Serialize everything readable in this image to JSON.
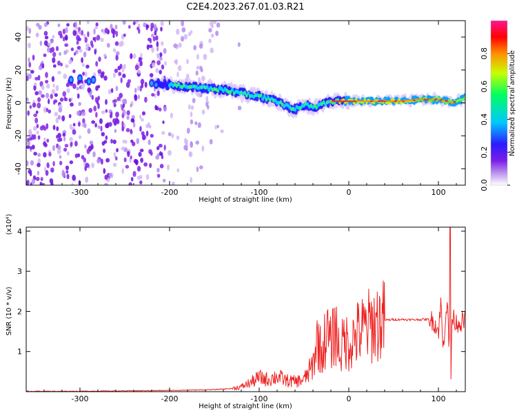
{
  "title": "C2E4.2023.267.01.03.R21",
  "chart_data": [
    {
      "type": "heatmap",
      "name": "spectrogram",
      "xlabel": "Height of straight line (km)",
      "ylabel": "Frequency (Hz)",
      "xlim": [
        -360,
        130
      ],
      "ylim": [
        -50,
        50
      ],
      "xticks": [
        -300,
        -200,
        -100,
        0,
        100
      ],
      "yticks": [
        -40,
        -20,
        0,
        20,
        40
      ],
      "colorbar": {
        "label": "Normalized spectral amplitude",
        "range": [
          0,
          1
        ],
        "ticks": [
          0.0,
          0.2,
          0.4,
          0.6,
          0.8
        ],
        "colors": [
          "#ffffff",
          "#c9a8f0",
          "#7a1ee6",
          "#2a1cff",
          "#00c8ff",
          "#00ff60",
          "#c8ff00",
          "#ff9000",
          "#ff0000",
          "#ff1493"
        ]
      },
      "ridge": {
        "x": [
          -310,
          -280,
          -220,
          -200,
          -180,
          -160,
          -140,
          -120,
          -100,
          -80,
          -70,
          -60,
          -50,
          -40,
          -30,
          -20,
          0,
          20,
          40,
          60,
          80,
          100,
          110,
          115,
          130
        ],
        "y": [
          14,
          13,
          12,
          11,
          10,
          9,
          8,
          6,
          4,
          1,
          -2,
          -4,
          -1,
          -3,
          -1,
          1,
          1,
          1,
          1,
          1,
          2,
          2,
          1,
          0,
          3
        ]
      }
    },
    {
      "type": "line",
      "name": "snr",
      "xlabel": "Height of straight line (km)",
      "ylabel": "SNR (10 * v/v)",
      "yscale_label": "(x10⁴)",
      "xlim": [
        -360,
        130
      ],
      "ylim": [
        0,
        4.1
      ],
      "xticks": [
        -300,
        -200,
        -100,
        0,
        100
      ],
      "yticks": [
        1,
        2,
        3,
        4
      ],
      "series": [
        {
          "name": "SNR",
          "color": "#ee2222",
          "x": [
            -360,
            -300,
            -250,
            -200,
            -150,
            -130,
            -120,
            -110,
            -100,
            -90,
            -80,
            -70,
            -60,
            -50,
            -40,
            -35,
            -30,
            -25,
            -20,
            -15,
            -10,
            -5,
            0,
            10,
            20,
            30,
            40,
            50,
            60,
            70,
            80,
            90,
            95,
            100,
            103,
            105,
            108,
            110,
            112,
            113,
            114,
            115,
            120,
            130
          ],
          "y": [
            0.01,
            0.01,
            0.02,
            0.03,
            0.05,
            0.08,
            0.12,
            0.22,
            0.35,
            0.3,
            0.38,
            0.28,
            0.25,
            0.3,
            0.65,
            1.35,
            0.9,
            1.5,
            1.15,
            1.6,
            0.95,
            1.3,
            1.2,
            1.45,
            1.6,
            1.72,
            1.78,
            1.8,
            1.8,
            1.79,
            1.8,
            1.8,
            1.75,
            1.5,
            2.25,
            1.0,
            1.9,
            2.3,
            0.8,
            4.1,
            0.3,
            1.85,
            1.72,
            1.75
          ]
        }
      ]
    }
  ]
}
